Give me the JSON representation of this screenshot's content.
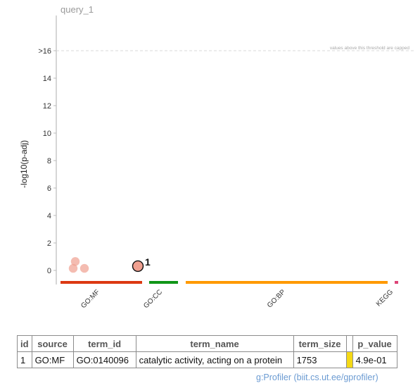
{
  "chart_data": {
    "type": "scatter",
    "title": "query_1",
    "ylabel": "-log10(p-adj)",
    "ylim": [
      0,
      16
    ],
    "yticks": [
      {
        "value": 0,
        "label": "0"
      },
      {
        "value": 2,
        "label": "2"
      },
      {
        "value": 4,
        "label": "4"
      },
      {
        "value": 6,
        "label": "6"
      },
      {
        "value": 8,
        "label": "8"
      },
      {
        "value": 10,
        "label": "10"
      },
      {
        "value": 12,
        "label": "12"
      },
      {
        "value": 14,
        "label": "14"
      },
      {
        "value": 16,
        "label": ">16"
      }
    ],
    "threshold_note": "values above this threshold are capped",
    "sources": [
      {
        "name": "GO:MF",
        "color": "#dc3912"
      },
      {
        "name": "GO:CC",
        "color": "#109618"
      },
      {
        "name": "GO:BP",
        "color": "#ff9900"
      },
      {
        "name": "KEGG",
        "color": "#dd4477"
      }
    ],
    "points": [
      {
        "source": "GO:MF",
        "y": 0.15,
        "highlighted": false,
        "label": ""
      },
      {
        "source": "GO:MF",
        "y": 0.65,
        "highlighted": false,
        "label": ""
      },
      {
        "source": "GO:MF",
        "y": 0.15,
        "highlighted": false,
        "label": ""
      },
      {
        "source": "GO:MF",
        "y": 0.31,
        "highlighted": true,
        "label": "1"
      }
    ],
    "point_color": "#f0a090"
  },
  "table": {
    "headers": [
      "id",
      "source",
      "term_id",
      "term_name",
      "term_size",
      "",
      "p_value"
    ],
    "rows": [
      {
        "id": "1",
        "source": "GO:MF",
        "term_id": "GO:0140096",
        "term_name": "catalytic activity, acting on a protein",
        "term_size": "1753",
        "color": "#f5d915",
        "p_value": "4.9e-01"
      }
    ]
  },
  "footer": "g:Profiler (biit.cs.ut.ee/gprofiler)"
}
